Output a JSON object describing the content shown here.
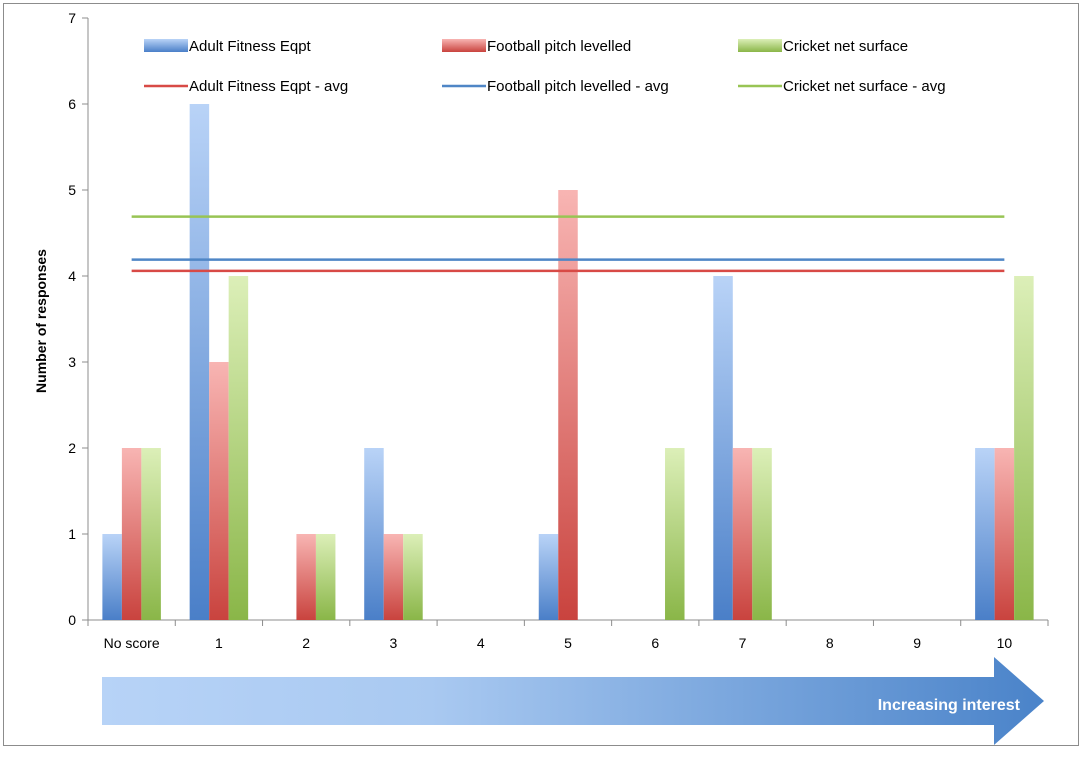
{
  "chart_data": {
    "type": "bar",
    "title": "",
    "xlabel": "",
    "ylabel": "Number of responses",
    "ylim": [
      0,
      7
    ],
    "y_ticks": [
      0,
      1,
      2,
      3,
      4,
      5,
      6,
      7
    ],
    "categories": [
      "No score",
      "1",
      "2",
      "3",
      "4",
      "5",
      "6",
      "7",
      "8",
      "9",
      "10"
    ],
    "series": [
      {
        "name": "Adult Fitness Eqpt",
        "values": [
          1,
          6,
          0,
          2,
          0,
          1,
          0,
          4,
          0,
          0,
          2
        ],
        "color": "#5b8fd4"
      },
      {
        "name": "Football pitch levelled",
        "values": [
          2,
          3,
          1,
          1,
          0,
          5,
          0,
          2,
          0,
          0,
          2
        ],
        "color": "#d9534f"
      },
      {
        "name": "Cricket net surface",
        "values": [
          2,
          4,
          1,
          1,
          0,
          0,
          2,
          2,
          0,
          0,
          4
        ],
        "color": "#9cc259"
      }
    ],
    "averages": [
      {
        "name": "Adult Fitness Eqpt - avg",
        "value": 4.06,
        "color": "#d84a46"
      },
      {
        "name": "Football pitch levelled - avg",
        "value": 4.19,
        "color": "#4f86c6"
      },
      {
        "name": "Cricket net surface - avg",
        "value": 4.69,
        "color": "#98c454"
      }
    ],
    "legend_position": "top",
    "grid": false,
    "arrow_annotation": "Increasing interest"
  }
}
